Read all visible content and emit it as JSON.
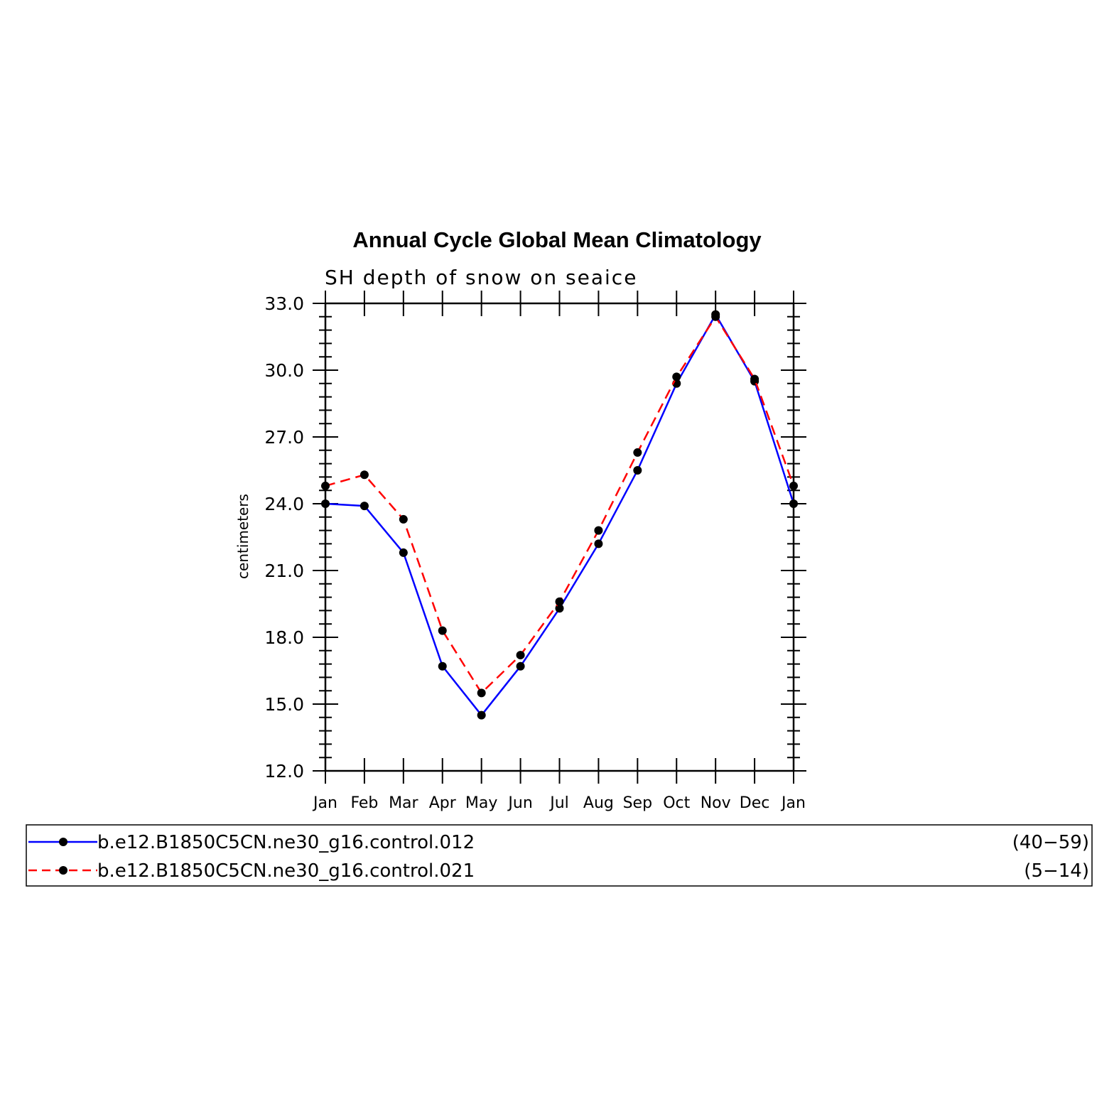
{
  "chart_data": {
    "type": "line",
    "title": "Annual Cycle Global Mean Climatology",
    "subtitle": "SH depth of snow on seaice",
    "ylabel": "centimeters",
    "xlabel": "",
    "ylim": [
      12.0,
      33.0
    ],
    "yticks": [
      "12.0",
      "15.0",
      "18.0",
      "21.0",
      "24.0",
      "27.0",
      "30.0",
      "33.0"
    ],
    "categories": [
      "Jan",
      "Feb",
      "Mar",
      "Apr",
      "May",
      "Jun",
      "Jul",
      "Aug",
      "Sep",
      "Oct",
      "Nov",
      "Dec",
      "Jan"
    ],
    "series": [
      {
        "name": "b.e12.B1850C5CN.ne30_g16.control.012",
        "years": "(40−59)",
        "color": "#0000ff",
        "dash": "solid",
        "values": [
          24.0,
          23.9,
          21.8,
          16.7,
          14.5,
          16.7,
          19.3,
          22.2,
          25.5,
          29.4,
          32.5,
          29.5,
          24.0
        ]
      },
      {
        "name": "b.e12.B1850C5CN.ne30_g16.control.021",
        "years": "(5−14)",
        "color": "#ff0000",
        "dash": "dashed",
        "values": [
          24.8,
          25.3,
          23.3,
          18.3,
          15.5,
          17.2,
          19.6,
          22.8,
          26.3,
          29.7,
          32.4,
          29.6,
          24.8
        ]
      }
    ],
    "grid": false,
    "legend_position": "bottom"
  }
}
